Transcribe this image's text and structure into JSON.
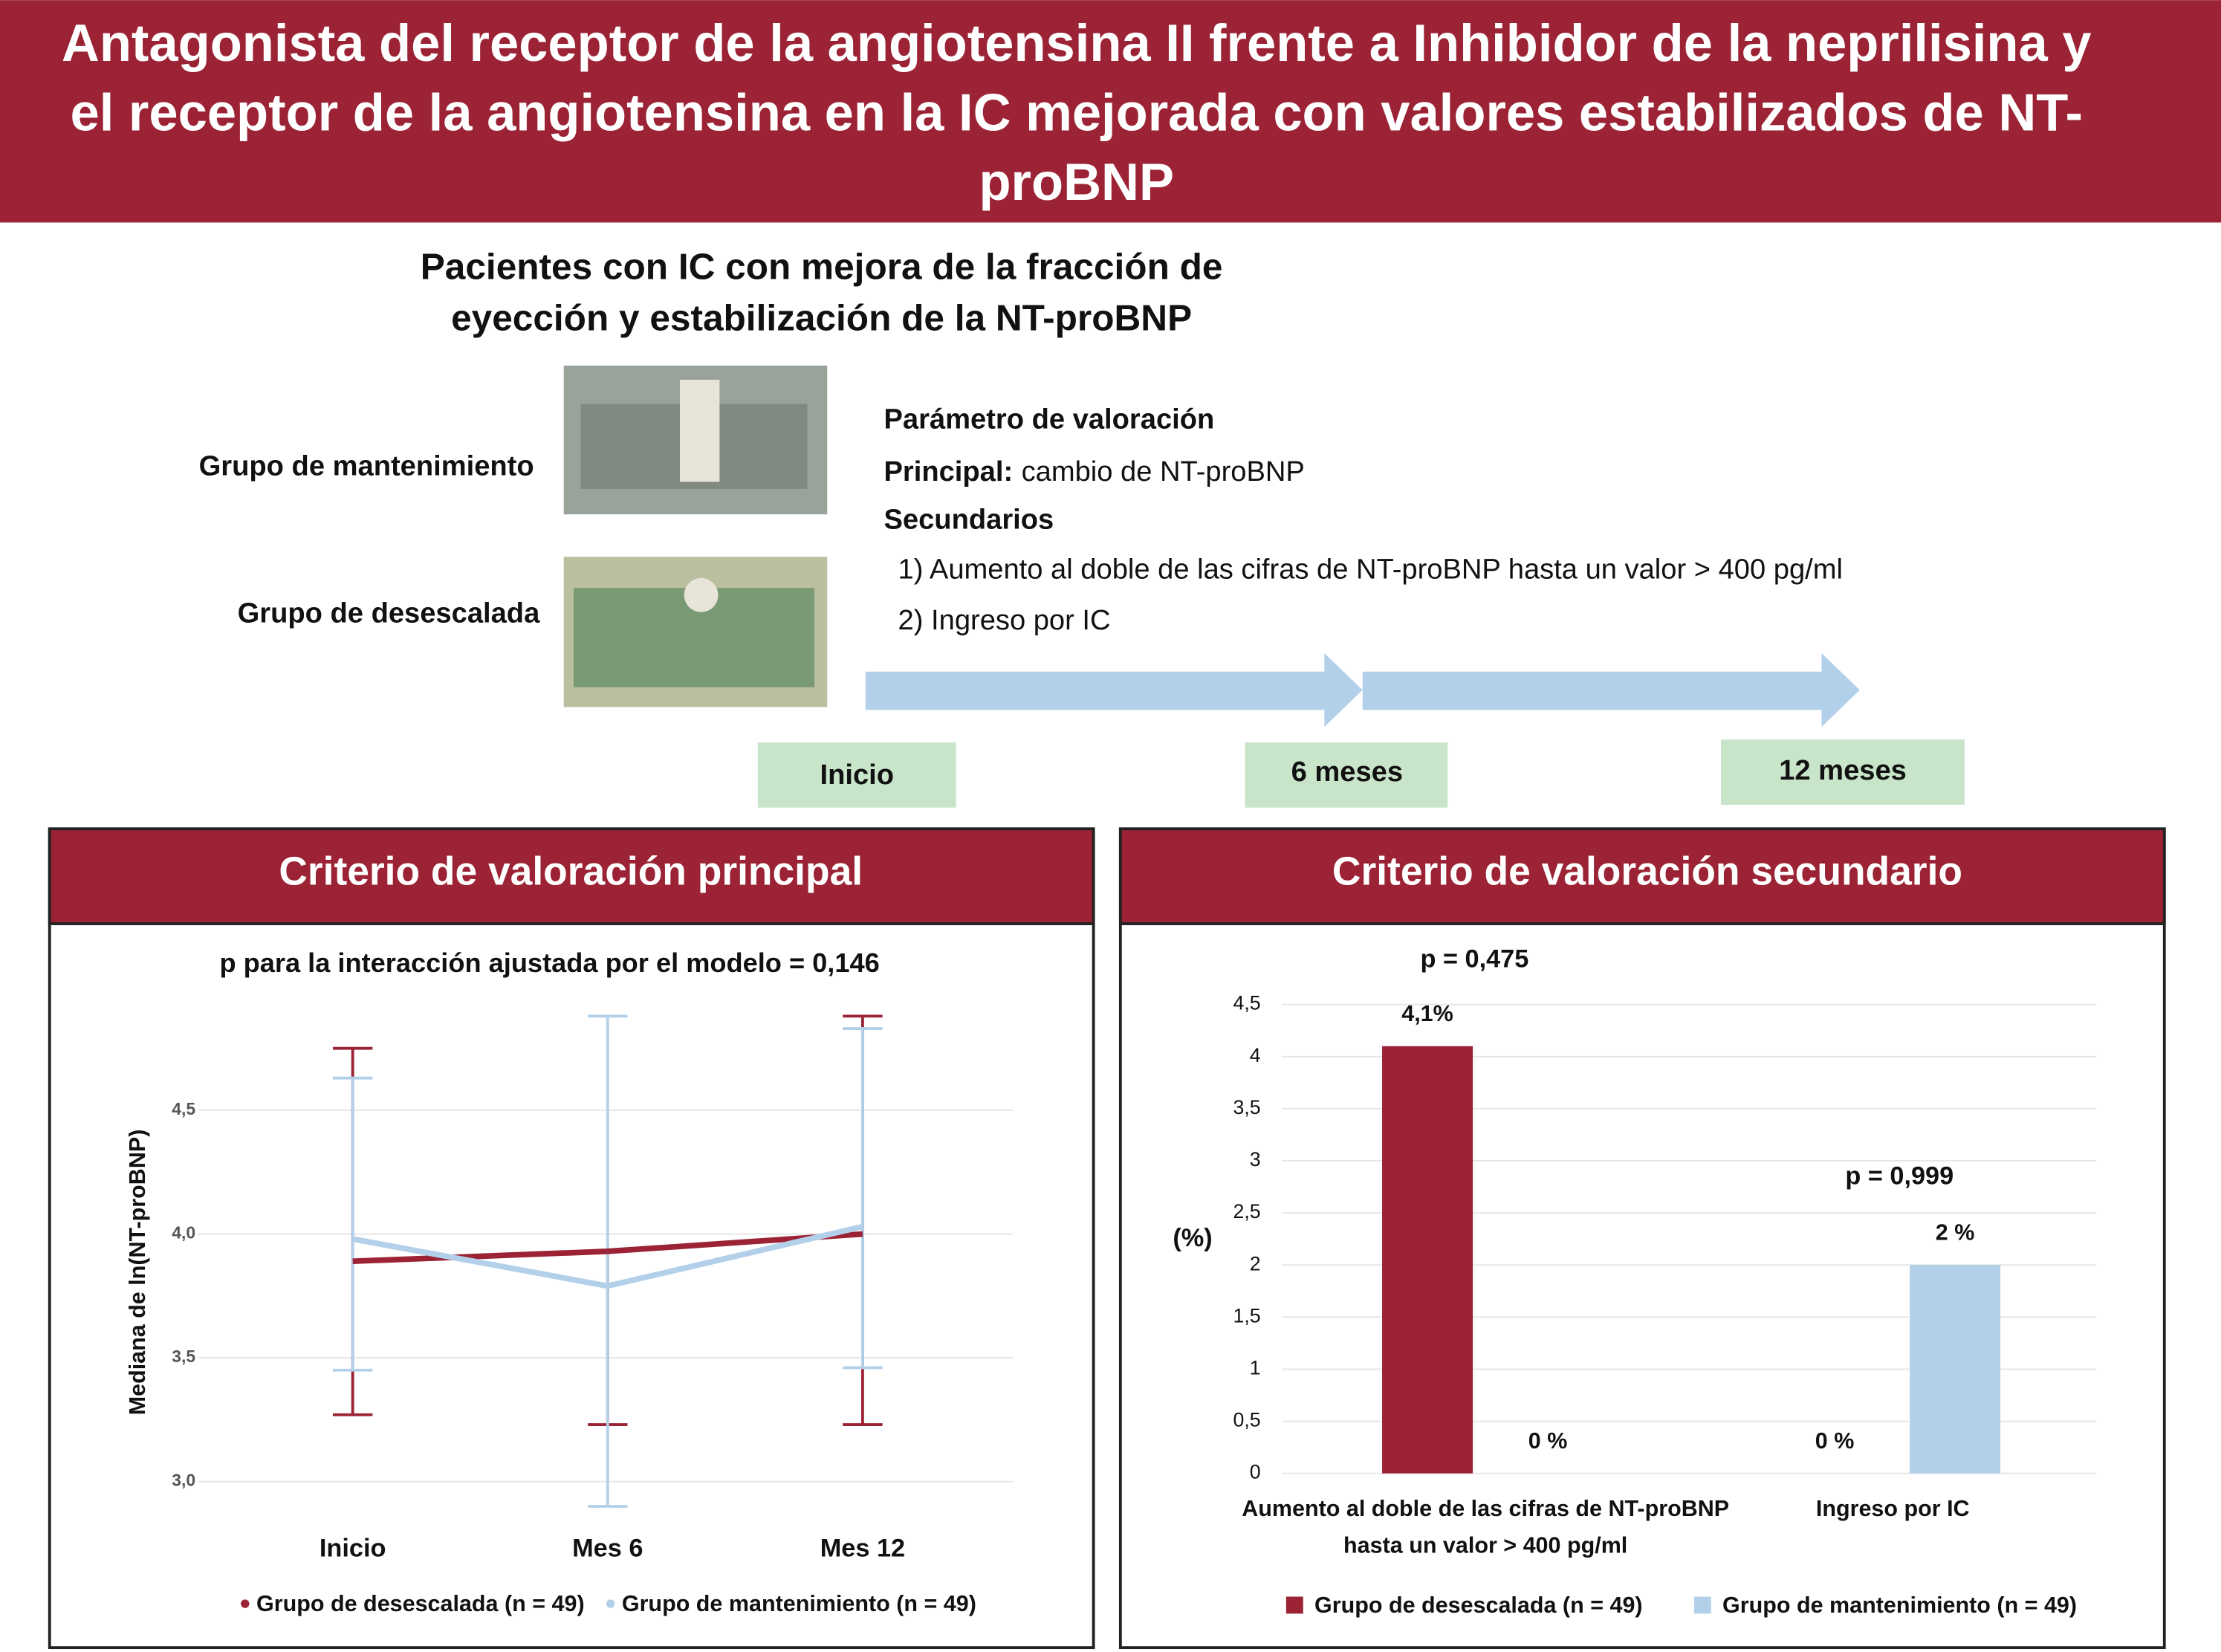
{
  "header": {
    "title": "Antagonista del receptor de la angiotensina II frente a Inhibidor de la neprilisina y el receptor de la angiotensina en la IC mejorada con valores estabilizados de NT-proBNP"
  },
  "population": {
    "title": "Pacientes con IC con mejora de la fracción de eyección y estabilización de la NT-proBNP",
    "groups": [
      "Grupo de mantenimiento",
      "Grupo de desescalada"
    ]
  },
  "endpoints": {
    "heading": "Parámetro de valoración",
    "primary_label": "Principal:",
    "primary_text": "cambio de NT-proBNP",
    "secondary_heading": "Secundarios",
    "secondary": [
      "1) Aumento al doble de las cifras de NT-proBNP hasta un valor > 400 pg/ml",
      "2) Ingreso por IC"
    ]
  },
  "timeline": [
    "Inicio",
    "6 meses",
    "12 meses"
  ],
  "chart_data": [
    {
      "type": "line",
      "panel_title": "Criterio de valoración principal",
      "title": "p para la interacción ajustada por el modelo = 0,146",
      "y_label": "Mediana de ln(NT-proBNP)",
      "categories": [
        "Inicio",
        "Mes 6",
        "Mes 12"
      ],
      "series": [
        {
          "name": "Grupo de desescalada (n = 49)",
          "color": "#9b2335",
          "values": [
            3.89,
            3.93,
            4.0
          ],
          "lower": [
            3.27,
            3.23,
            3.23
          ],
          "upper": [
            4.75,
            null,
            4.88
          ]
        },
        {
          "name": "Grupo de mantenimiento (n = 49)",
          "color": "#b3d0ea",
          "values": [
            3.98,
            3.79,
            4.03
          ],
          "lower": [
            3.45,
            2.9,
            3.46
          ],
          "upper": [
            4.63,
            4.88,
            4.83
          ]
        }
      ],
      "ylim": [
        2.85,
        4.95
      ],
      "yticks": [
        {
          "value": 3,
          "label": "3,0"
        },
        {
          "value": 3.5,
          "label": "3,5"
        },
        {
          "value": 4,
          "label": "4,0"
        },
        {
          "value": 4.5,
          "label": "4,5"
        }
      ],
      "grid": true
    },
    {
      "type": "bar",
      "panel_title": "Criterio de valoración secundario",
      "y_label": "(%)",
      "categories": [
        "Aumento al doble de las cifras de NT-proBNP hasta un valor > 400 pg/ml",
        "Ingreso por IC"
      ],
      "series": [
        {
          "name": "Grupo de desescalada (n = 49)",
          "color": "#9b2335",
          "values": [
            4.1,
            0
          ],
          "value_labels": [
            "4,1%",
            "0 %"
          ]
        },
        {
          "name": "Grupo de mantenimiento (n = 49)",
          "color": "#b3d0ea",
          "values": [
            0,
            2
          ],
          "value_labels": [
            "0 %",
            "2 %"
          ]
        }
      ],
      "annotations": [
        "p = 0,475",
        "p = 0,999"
      ],
      "ylim": [
        0,
        4.5
      ],
      "yticks": [
        0,
        {
          "value": 0.5,
          "label": "0,5"
        },
        1,
        {
          "value": 1.5,
          "label": "1,5"
        },
        2,
        {
          "value": 2.5,
          "label": "2,5"
        },
        3,
        {
          "value": 3.5,
          "label": "3,5"
        },
        4,
        {
          "value": 4.5,
          "label": "4,5"
        }
      ],
      "grid": true
    }
  ]
}
